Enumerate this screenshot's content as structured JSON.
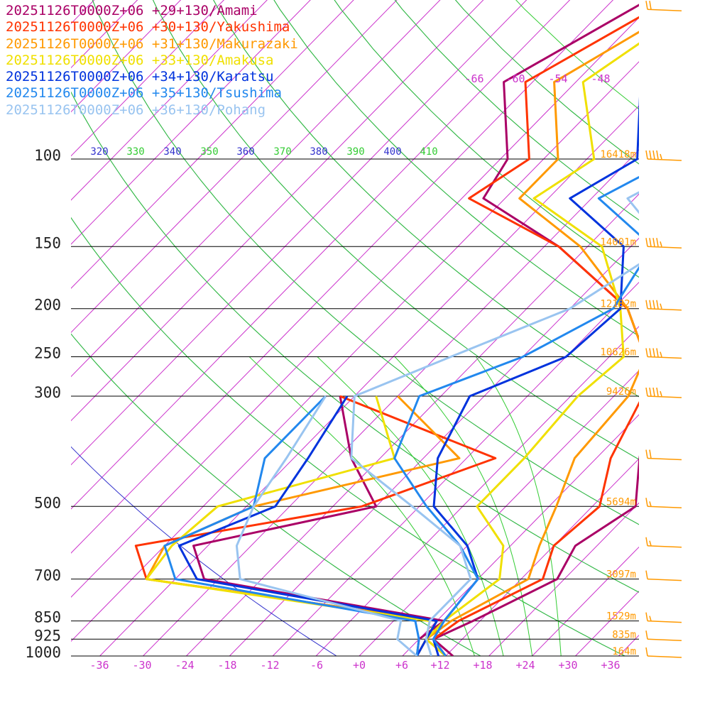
{
  "chart_data": {
    "type": "line",
    "title": "",
    "y_axis": "pressure_hPa (log scale)",
    "x_axis": "temperature_C (skewed)",
    "pressure_levels": [
      {
        "p": 100,
        "label": "100",
        "height": "16418m"
      },
      {
        "p": 150,
        "label": "150",
        "height": "14001m"
      },
      {
        "p": 200,
        "label": "200",
        "height": "12182m"
      },
      {
        "p": 250,
        "label": "250",
        "height": "10626m"
      },
      {
        "p": 300,
        "label": "300",
        "height": "9426m"
      },
      {
        "p": 500,
        "label": "500",
        "height": "5694m"
      },
      {
        "p": 700,
        "label": "700",
        "height": "3097m"
      },
      {
        "p": 850,
        "label": "850",
        "height": "1529m"
      },
      {
        "p": 925,
        "label": "925",
        "height": "835m"
      },
      {
        "p": 1000,
        "label": "1000",
        "height": "164m"
      }
    ],
    "temp_ticks": [
      "-36",
      "-30",
      "-24",
      "-18",
      "-12",
      "-6",
      "+0",
      "+6",
      "+12",
      "+18",
      "+24",
      "+30",
      "+36"
    ],
    "upper_temp_labels": [
      "-66",
      "-60",
      "-54",
      "-48"
    ],
    "theta_labels": [
      "320",
      "330",
      "340",
      "350",
      "360",
      "370",
      "380",
      "390",
      "400",
      "410"
    ],
    "colors": {
      "isotherm": "#cc33cc",
      "dry_adiabat": "#3333cc",
      "moist_adiabat": "#33cc33",
      "pressure_line": "#000000",
      "height_label": "#ff9900",
      "wind_barb": "#ff9900",
      "temp_tick": "#cc33cc"
    },
    "series": [
      {
        "name": "20251126T0000Z+06 +29+130/Amami",
        "color": "#aa0066",
        "temp": [
          [
            1000,
            13
          ],
          [
            925,
            8
          ],
          [
            850,
            11
          ],
          [
            700,
            17
          ],
          [
            600,
            15
          ],
          [
            500,
            18
          ],
          [
            400,
            12
          ],
          [
            300,
            5
          ],
          [
            250,
            -1
          ],
          [
            200,
            -10
          ],
          [
            150,
            -28
          ],
          [
            120,
            -45
          ],
          [
            100,
            -47
          ],
          [
            70,
            -58
          ],
          [
            40,
            -45
          ]
        ],
        "dew": [
          [
            1000,
            8
          ],
          [
            925,
            6
          ],
          [
            850,
            7
          ],
          [
            700,
            -32
          ],
          [
            600,
            -38
          ],
          [
            500,
            -18
          ],
          [
            400,
            -28
          ],
          [
            300,
            -38
          ]
        ]
      },
      {
        "name": "20251126T0000Z+06 +30+130/Yakushima",
        "color": "#ff3300",
        "temp": [
          [
            1000,
            12
          ],
          [
            925,
            8
          ],
          [
            850,
            9
          ],
          [
            700,
            15
          ],
          [
            600,
            12
          ],
          [
            500,
            13
          ],
          [
            400,
            8
          ],
          [
            300,
            4
          ],
          [
            250,
            -1
          ],
          [
            200,
            -10
          ],
          [
            150,
            -28
          ],
          [
            120,
            -47
          ],
          [
            100,
            -44
          ],
          [
            70,
            -55
          ],
          [
            40,
            -42
          ]
        ],
        "dew": [
          [
            1000,
            8
          ],
          [
            925,
            7
          ],
          [
            850,
            6
          ],
          [
            700,
            -40
          ],
          [
            600,
            -46
          ],
          [
            500,
            -20
          ],
          [
            400,
            -8
          ],
          [
            300,
            -38
          ]
        ]
      },
      {
        "name": "20251126T0000Z+06 +31+130/Makurazaki",
        "color": "#ff9900",
        "temp": [
          [
            1000,
            12
          ],
          [
            925,
            7
          ],
          [
            850,
            8
          ],
          [
            700,
            13
          ],
          [
            600,
            10
          ],
          [
            500,
            7
          ],
          [
            400,
            3
          ],
          [
            300,
            2
          ],
          [
            250,
            -1
          ],
          [
            200,
            -10
          ],
          [
            150,
            -25
          ],
          [
            120,
            -40
          ],
          [
            100,
            -40
          ],
          [
            70,
            -51
          ],
          [
            40,
            -39
          ]
        ],
        "dew": [
          [
            1000,
            8
          ],
          [
            925,
            7
          ],
          [
            850,
            6
          ],
          [
            700,
            -40
          ],
          [
            600,
            -42
          ],
          [
            500,
            -35
          ],
          [
            400,
            -13
          ],
          [
            300,
            -30
          ]
        ]
      },
      {
        "name": "20251126T0000Z+06 +33+130/Amakusa",
        "color": "#f0e000",
        "temp": [
          [
            1000,
            12
          ],
          [
            925,
            7
          ],
          [
            850,
            7
          ],
          [
            700,
            9
          ],
          [
            600,
            5
          ],
          [
            500,
            -4
          ],
          [
            400,
            -4
          ],
          [
            300,
            -5
          ],
          [
            250,
            -4
          ],
          [
            200,
            -11
          ],
          [
            150,
            -22
          ],
          [
            120,
            -38
          ],
          [
            100,
            -35
          ],
          [
            70,
            -47
          ],
          [
            40,
            -39
          ]
        ],
        "dew": [
          [
            1000,
            8
          ],
          [
            925,
            7
          ],
          [
            850,
            5
          ],
          [
            700,
            -40
          ],
          [
            600,
            -41
          ],
          [
            500,
            -40
          ],
          [
            400,
            -22
          ],
          [
            300,
            -33
          ]
        ]
      },
      {
        "name": "20251126T0000Z+06 +34+130/Karatsu",
        "color": "#0033dd",
        "temp": [
          [
            1000,
            11
          ],
          [
            925,
            8
          ],
          [
            850,
            7
          ],
          [
            700,
            6
          ],
          [
            600,
            0
          ],
          [
            500,
            -10
          ],
          [
            400,
            -16
          ],
          [
            300,
            -20
          ],
          [
            250,
            -12
          ],
          [
            200,
            -11
          ],
          [
            150,
            -19
          ],
          [
            120,
            -33
          ],
          [
            100,
            -29
          ],
          [
            70,
            -39
          ],
          [
            40,
            -38
          ]
        ],
        "dew": [
          [
            1000,
            8
          ],
          [
            925,
            7
          ],
          [
            850,
            6
          ],
          [
            700,
            -33
          ],
          [
            600,
            -40
          ],
          [
            500,
            -32
          ],
          [
            400,
            -34
          ],
          [
            300,
            -37
          ]
        ]
      },
      {
        "name": "20251126T0000Z+06 +35+130/Tsushima",
        "color": "#2288ee",
        "temp": [
          [
            1000,
            12
          ],
          [
            925,
            8
          ],
          [
            850,
            7
          ],
          [
            700,
            6
          ],
          [
            600,
            -1
          ],
          [
            500,
            -11
          ],
          [
            400,
            -22
          ],
          [
            300,
            -27
          ],
          [
            250,
            -18
          ],
          [
            200,
            -12
          ],
          [
            150,
            -15
          ],
          [
            120,
            -29
          ],
          [
            100,
            -24
          ],
          [
            70,
            -35
          ],
          [
            40,
            -33
          ]
        ],
        "dew": [
          [
            1000,
            8
          ],
          [
            925,
            6
          ],
          [
            850,
            3
          ],
          [
            700,
            -36
          ],
          [
            600,
            -42
          ],
          [
            500,
            -35
          ],
          [
            400,
            -40
          ],
          [
            300,
            -40
          ]
        ]
      },
      {
        "name": "20251126T0000Z+06 +36+130/Pohang",
        "color": "#99c4f0",
        "temp": [
          [
            1000,
            10
          ],
          [
            925,
            7
          ],
          [
            850,
            5
          ],
          [
            700,
            5
          ],
          [
            600,
            -1
          ],
          [
            500,
            -13
          ],
          [
            400,
            -28
          ],
          [
            300,
            -36
          ],
          [
            250,
            -28
          ],
          [
            200,
            -18
          ],
          [
            150,
            -13
          ],
          [
            120,
            -25
          ],
          [
            100,
            -20
          ],
          [
            70,
            -28
          ],
          [
            40,
            -30
          ]
        ],
        "dew": [
          [
            1000,
            8
          ],
          [
            925,
            3
          ],
          [
            850,
            1
          ],
          [
            700,
            -27
          ],
          [
            600,
            -32
          ],
          [
            500,
            -35
          ],
          [
            400,
            -37
          ],
          [
            300,
            -40
          ]
        ]
      }
    ],
    "wind_barbs": [
      {
        "p": 1000,
        "flags": 0,
        "full": 1,
        "half": 0
      },
      {
        "p": 925,
        "flags": 0,
        "full": 1,
        "half": 0
      },
      {
        "p": 850,
        "flags": 0,
        "full": 1,
        "half": 1
      },
      {
        "p": 700,
        "flags": 0,
        "full": 1,
        "half": 0
      },
      {
        "p": 600,
        "flags": 0,
        "full": 1,
        "half": 1
      },
      {
        "p": 500,
        "flags": 0,
        "full": 1,
        "half": 1
      },
      {
        "p": 400,
        "flags": 0,
        "full": 2,
        "half": 0
      },
      {
        "p": 300,
        "flags": 0,
        "full": 4,
        "half": 1
      },
      {
        "p": 250,
        "flags": 0,
        "full": 4,
        "half": 1
      },
      {
        "p": 200,
        "flags": 0,
        "full": 4,
        "half": 1
      },
      {
        "p": 150,
        "flags": 0,
        "full": 4,
        "half": 1
      },
      {
        "p": 100,
        "flags": 0,
        "full": 4,
        "half": 1
      },
      {
        "p": 50,
        "flags": 0,
        "full": 2,
        "half": 0
      },
      {
        "p": 30,
        "flags": 0,
        "full": 3,
        "half": 0
      }
    ]
  }
}
